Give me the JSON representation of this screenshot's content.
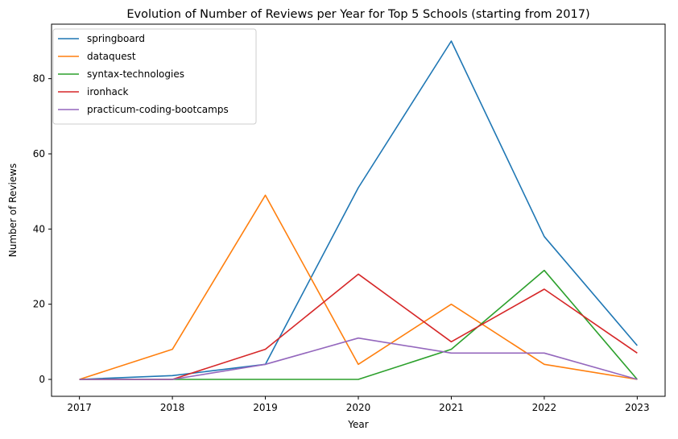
{
  "chart_data": {
    "type": "line",
    "title": "Evolution of Number of Reviews per Year for Top 5 Schools (starting from 2017)",
    "xlabel": "Year",
    "ylabel": "Number of Reviews",
    "x": [
      "2017",
      "2018",
      "2019",
      "2020",
      "2021",
      "2022",
      "2023"
    ],
    "xlim": [
      2016.7,
      2023.3
    ],
    "ylim": [
      -4.5,
      94.5
    ],
    "yticks": [
      0,
      20,
      40,
      60,
      80
    ],
    "grid": false,
    "legend": "top-left",
    "series": [
      {
        "name": "springboard",
        "color": "#1f77b4",
        "values": [
          0,
          1,
          4,
          51,
          90,
          38,
          9
        ]
      },
      {
        "name": "dataquest",
        "color": "#ff7f0e",
        "values": [
          0,
          8,
          49,
          4,
          20,
          4,
          0
        ]
      },
      {
        "name": "syntax-technologies",
        "color": "#2ca02c",
        "values": [
          0,
          0,
          0,
          0,
          8,
          29,
          0
        ]
      },
      {
        "name": "ironhack",
        "color": "#d62728",
        "values": [
          0,
          0,
          8,
          28,
          10,
          24,
          7
        ]
      },
      {
        "name": "practicum-coding-bootcamps",
        "color": "#9467bd",
        "values": [
          0,
          0,
          4,
          11,
          7,
          7,
          0
        ]
      }
    ]
  }
}
